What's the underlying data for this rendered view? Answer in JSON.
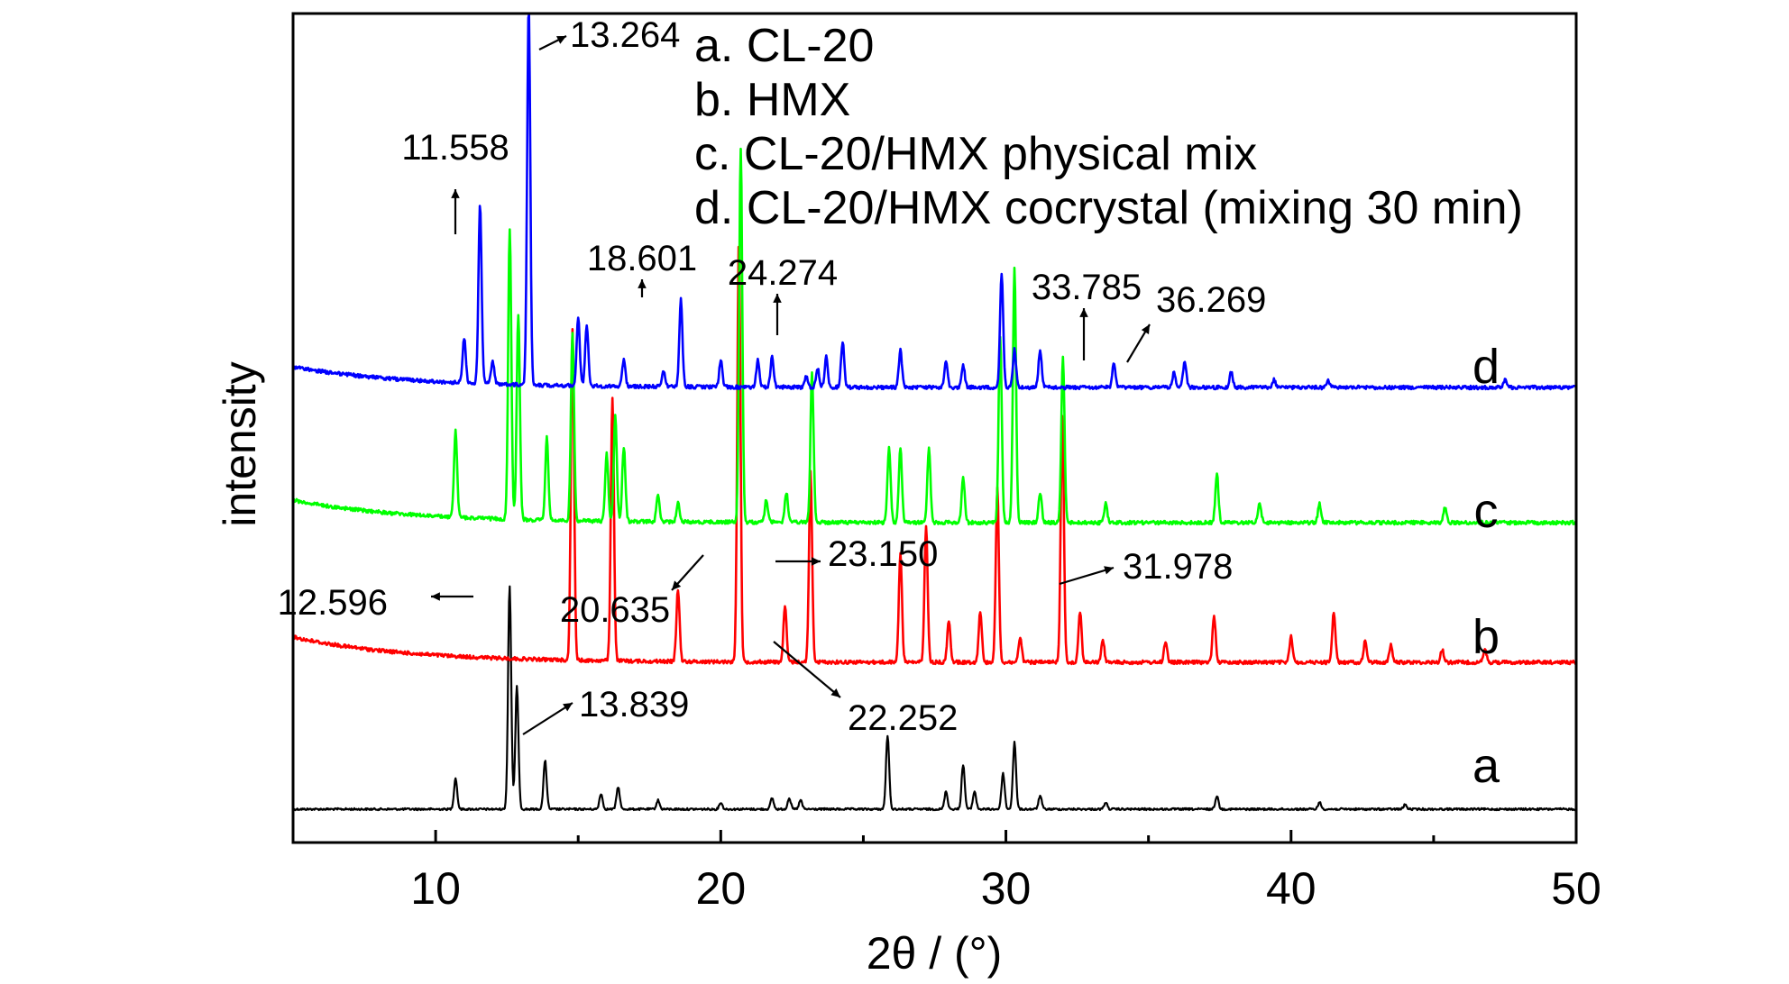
{
  "chart_data": {
    "type": "line",
    "xlabel": "2θ / (°)",
    "ylabel": "intensity",
    "xlim": [
      5,
      50
    ],
    "xticks": [
      "10",
      "20",
      "30",
      "40",
      "50"
    ],
    "yticks_shown": false,
    "grid": false,
    "stacked_offset": true,
    "legend": {
      "placement": "top-right",
      "entries": [
        "a. CL-20",
        "b. HMX",
        "c. CL-20/HMX physical mix",
        "d. CL-20/HMX cocrystal (mixing 30 min)"
      ]
    },
    "series": [
      {
        "name": "a",
        "legend_entry": "a. CL-20",
        "color": "#000000",
        "peaks": [
          {
            "x": 10.7,
            "h": 0.14
          },
          {
            "x": 12.596,
            "h": 1.0
          },
          {
            "x": 12.85,
            "h": 0.55
          },
          {
            "x": 13.839,
            "h": 0.22
          },
          {
            "x": 15.8,
            "h": 0.07
          },
          {
            "x": 16.4,
            "h": 0.1
          },
          {
            "x": 17.8,
            "h": 0.04
          },
          {
            "x": 20.0,
            "h": 0.03
          },
          {
            "x": 21.8,
            "h": 0.05
          },
          {
            "x": 22.4,
            "h": 0.05
          },
          {
            "x": 22.8,
            "h": 0.04
          },
          {
            "x": 25.85,
            "h": 0.33
          },
          {
            "x": 27.9,
            "h": 0.08
          },
          {
            "x": 28.5,
            "h": 0.2
          },
          {
            "x": 28.9,
            "h": 0.08
          },
          {
            "x": 29.9,
            "h": 0.16
          },
          {
            "x": 30.3,
            "h": 0.3
          },
          {
            "x": 31.2,
            "h": 0.06
          },
          {
            "x": 33.5,
            "h": 0.03
          },
          {
            "x": 37.4,
            "h": 0.06
          },
          {
            "x": 41.0,
            "h": 0.03
          },
          {
            "x": 44.0,
            "h": 0.02
          }
        ],
        "peak_labels": [
          {
            "value": "12.596",
            "x": 12.596
          },
          {
            "value": "13.839",
            "x": 13.839
          }
        ],
        "trace_label": "a"
      },
      {
        "name": "b",
        "legend_entry": "b. HMX",
        "color": "#ff0000",
        "peaks": [
          {
            "x": 14.8,
            "h": 0.78
          },
          {
            "x": 16.2,
            "h": 0.62
          },
          {
            "x": 18.5,
            "h": 0.17
          },
          {
            "x": 20.635,
            "h": 1.0
          },
          {
            "x": 22.252,
            "h": 0.13
          },
          {
            "x": 23.15,
            "h": 0.45
          },
          {
            "x": 26.3,
            "h": 0.26
          },
          {
            "x": 27.2,
            "h": 0.32
          },
          {
            "x": 28.0,
            "h": 0.1
          },
          {
            "x": 29.1,
            "h": 0.12
          },
          {
            "x": 29.7,
            "h": 0.41
          },
          {
            "x": 30.5,
            "h": 0.06
          },
          {
            "x": 31.978,
            "h": 0.58
          },
          {
            "x": 32.6,
            "h": 0.12
          },
          {
            "x": 33.4,
            "h": 0.05
          },
          {
            "x": 35.6,
            "h": 0.05
          },
          {
            "x": 37.3,
            "h": 0.11
          },
          {
            "x": 40.0,
            "h": 0.06
          },
          {
            "x": 41.5,
            "h": 0.12
          },
          {
            "x": 42.6,
            "h": 0.05
          },
          {
            "x": 43.5,
            "h": 0.04
          },
          {
            "x": 45.3,
            "h": 0.03
          },
          {
            "x": 46.8,
            "h": 0.03
          }
        ],
        "peak_labels": [
          {
            "value": "20.635",
            "x": 20.635
          },
          {
            "value": "22.252",
            "x": 22.252
          },
          {
            "value": "23.150",
            "x": 23.15
          },
          {
            "value": "31.978",
            "x": 31.978
          }
        ],
        "trace_label": "b"
      },
      {
        "name": "c",
        "legend_entry": "c. CL-20/HMX physical mix",
        "color": "#00ff00",
        "peaks": [
          {
            "x": 10.7,
            "h": 0.23
          },
          {
            "x": 12.6,
            "h": 0.78
          },
          {
            "x": 12.9,
            "h": 0.55
          },
          {
            "x": 13.9,
            "h": 0.22
          },
          {
            "x": 14.8,
            "h": 0.5
          },
          {
            "x": 16.0,
            "h": 0.18
          },
          {
            "x": 16.3,
            "h": 0.28
          },
          {
            "x": 16.6,
            "h": 0.2
          },
          {
            "x": 17.8,
            "h": 0.07
          },
          {
            "x": 18.5,
            "h": 0.05
          },
          {
            "x": 20.7,
            "h": 1.0
          },
          {
            "x": 21.6,
            "h": 0.06
          },
          {
            "x": 22.3,
            "h": 0.08
          },
          {
            "x": 23.2,
            "h": 0.4
          },
          {
            "x": 25.9,
            "h": 0.2
          },
          {
            "x": 26.3,
            "h": 0.2
          },
          {
            "x": 27.3,
            "h": 0.2
          },
          {
            "x": 28.5,
            "h": 0.12
          },
          {
            "x": 29.8,
            "h": 0.5
          },
          {
            "x": 30.3,
            "h": 0.68
          },
          {
            "x": 31.2,
            "h": 0.08
          },
          {
            "x": 32.0,
            "h": 0.44
          },
          {
            "x": 33.5,
            "h": 0.05
          },
          {
            "x": 37.4,
            "h": 0.13
          },
          {
            "x": 38.9,
            "h": 0.05
          },
          {
            "x": 41.0,
            "h": 0.05
          },
          {
            "x": 45.4,
            "h": 0.04
          }
        ],
        "peak_labels": [],
        "trace_label": "c"
      },
      {
        "name": "d",
        "legend_entry": "d. CL-20/HMX cocrystal (mixing 30 min)",
        "color": "#0000ff",
        "peaks": [
          {
            "x": 11.0,
            "h": 0.12
          },
          {
            "x": 11.558,
            "h": 0.47
          },
          {
            "x": 12.0,
            "h": 0.06
          },
          {
            "x": 13.264,
            "h": 1.0
          },
          {
            "x": 15.0,
            "h": 0.18
          },
          {
            "x": 15.3,
            "h": 0.16
          },
          {
            "x": 16.6,
            "h": 0.07
          },
          {
            "x": 18.0,
            "h": 0.04
          },
          {
            "x": 18.601,
            "h": 0.23
          },
          {
            "x": 20.0,
            "h": 0.07
          },
          {
            "x": 21.3,
            "h": 0.07
          },
          {
            "x": 21.8,
            "h": 0.08
          },
          {
            "x": 23.0,
            "h": 0.03
          },
          {
            "x": 23.4,
            "h": 0.05
          },
          {
            "x": 23.7,
            "h": 0.08
          },
          {
            "x": 24.274,
            "h": 0.12
          },
          {
            "x": 26.3,
            "h": 0.1
          },
          {
            "x": 27.9,
            "h": 0.07
          },
          {
            "x": 28.5,
            "h": 0.06
          },
          {
            "x": 29.85,
            "h": 0.3
          },
          {
            "x": 30.3,
            "h": 0.1
          },
          {
            "x": 31.2,
            "h": 0.1
          },
          {
            "x": 33.785,
            "h": 0.06
          },
          {
            "x": 35.9,
            "h": 0.04
          },
          {
            "x": 36.269,
            "h": 0.07
          },
          {
            "x": 37.9,
            "h": 0.04
          },
          {
            "x": 39.4,
            "h": 0.02
          },
          {
            "x": 41.3,
            "h": 0.02
          },
          {
            "x": 47.5,
            "h": 0.02
          }
        ],
        "peak_labels": [
          {
            "value": "11.558",
            "x": 11.558
          },
          {
            "value": "13.264",
            "x": 13.264
          },
          {
            "value": "18.601",
            "x": 18.601
          },
          {
            "value": "24.274",
            "x": 24.274
          },
          {
            "value": "33.785",
            "x": 33.785
          },
          {
            "value": "36.269",
            "x": 36.269
          }
        ],
        "trace_label": "d"
      }
    ]
  }
}
